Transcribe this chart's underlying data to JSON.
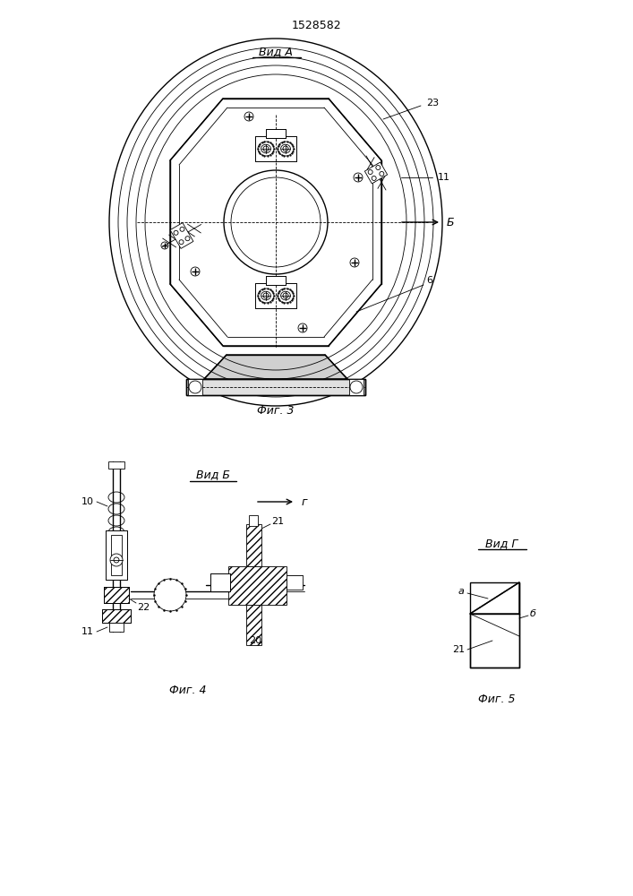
{
  "title": "1528582",
  "fig3_label": "Вид А",
  "fig3_caption": "Фиг. 3",
  "fig4_label": "Вид Б",
  "fig4_caption": "Фиг. 4",
  "fig5_label": "Вид Г",
  "fig5_caption": "Фиг. 5",
  "line_color": "#000000",
  "bg_color": "#ffffff",
  "lw_thin": 0.6,
  "lw_medium": 1.0,
  "lw_thick": 1.5
}
